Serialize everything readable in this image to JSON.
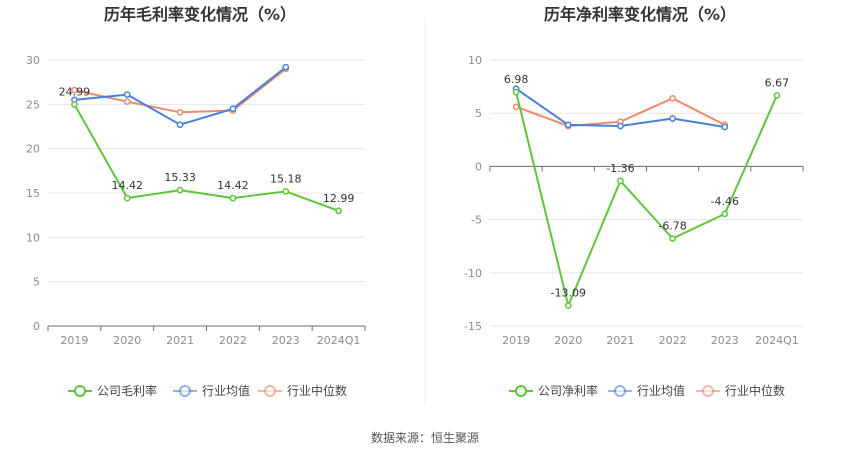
{
  "source_text": "数据来源：恒生聚源",
  "colors": {
    "company": "#5ec63a",
    "avg": "#4a7fd9",
    "median": "#f0896a"
  },
  "chart_data": [
    {
      "type": "line",
      "title": "历年毛利率变化情况（%）",
      "categories": [
        "2019",
        "2020",
        "2021",
        "2022",
        "2023",
        "2024Q1"
      ],
      "ylim": [
        0,
        30
      ],
      "yticks": [
        0,
        5,
        10,
        15,
        20,
        25,
        30
      ],
      "grid": true,
      "legend_position": "bottom",
      "series": [
        {
          "name": "公司毛利率",
          "key": "company",
          "values": [
            24.99,
            14.42,
            15.33,
            14.42,
            15.18,
            12.99
          ],
          "labels": [
            "24.99",
            "14.42",
            "15.33",
            "14.42",
            "15.18",
            "12.99"
          ]
        },
        {
          "name": "行业均值",
          "key": "avg",
          "values": [
            25.5,
            26.1,
            22.7,
            24.5,
            29.2,
            null
          ]
        },
        {
          "name": "行业中位数",
          "key": "median",
          "values": [
            26.6,
            25.3,
            24.1,
            24.3,
            29.0,
            null
          ]
        }
      ]
    },
    {
      "type": "line",
      "title": "历年净利率变化情况（%）",
      "categories": [
        "2019",
        "2020",
        "2021",
        "2022",
        "2023",
        "2024Q1"
      ],
      "ylim": [
        -15,
        10
      ],
      "yticks": [
        -15,
        -10,
        -5,
        0,
        5,
        10
      ],
      "grid": true,
      "legend_position": "bottom",
      "series": [
        {
          "name": "公司净利率",
          "key": "company",
          "values": [
            6.98,
            -13.09,
            -1.36,
            -6.78,
            -4.46,
            6.67
          ],
          "labels": [
            "6.98",
            "-13.09",
            "-1.36",
            "-6.78",
            "-4.46",
            "6.67"
          ]
        },
        {
          "name": "行业均值",
          "key": "avg",
          "values": [
            7.3,
            3.9,
            3.8,
            4.5,
            3.7,
            null
          ]
        },
        {
          "name": "行业中位数",
          "key": "median",
          "values": [
            5.6,
            3.8,
            4.2,
            6.4,
            3.9,
            null
          ]
        }
      ]
    }
  ]
}
